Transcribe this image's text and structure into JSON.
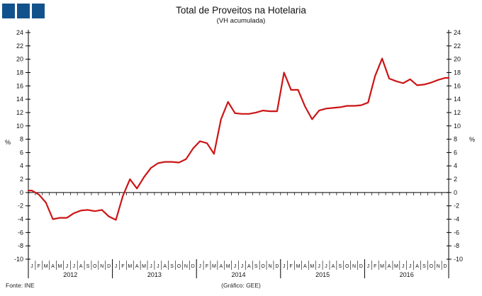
{
  "header": {
    "title": "Total de Proveitos na Hotelaria",
    "subtitle": "(VH acumulada)"
  },
  "footer": {
    "source": "Fonte: INE",
    "credit": "(Gráfico: GEE)"
  },
  "logo": {
    "color": "#12528c",
    "squares": 3
  },
  "axis_units": {
    "left": "%",
    "right": "%"
  },
  "chart_data": {
    "type": "line",
    "title": "Total de Proveitos na Hotelaria",
    "subtitle": "(VH acumulada)",
    "ylabel": "%",
    "ylim": [
      -10,
      24
    ],
    "ytick_step": 2,
    "yticks": [
      24,
      22,
      20,
      18,
      16,
      14,
      12,
      10,
      8,
      6,
      4,
      2,
      0,
      -2,
      -4,
      -6,
      -8,
      -10
    ],
    "grid": false,
    "legend": false,
    "line_color": "#cc1414",
    "axis_color": "#000000",
    "month_letters": [
      "J",
      "F",
      "M",
      "A",
      "M",
      "J",
      "J",
      "A",
      "S",
      "O",
      "N",
      "D"
    ],
    "years": [
      "2012",
      "2013",
      "2014",
      "2015",
      "2016"
    ],
    "series": [
      {
        "name": "Total de Proveitos na Hotelaria (VH acumulada, %)",
        "values": [
          0.3,
          -0.3,
          -1.5,
          -4.0,
          -3.8,
          -3.8,
          -3.1,
          -2.7,
          -2.6,
          -2.8,
          -2.6,
          -3.6,
          -4.1,
          -0.5,
          2.0,
          0.6,
          2.3,
          3.7,
          4.4,
          4.6,
          4.6,
          4.5,
          5.0,
          6.6,
          7.7,
          7.4,
          5.8,
          11.0,
          13.6,
          11.9,
          11.8,
          11.8,
          12.0,
          12.3,
          12.2,
          12.2,
          18.0,
          15.4,
          15.4,
          12.9,
          11.0,
          12.3,
          12.6,
          12.7,
          12.8,
          13.0,
          13.0,
          13.1,
          13.5,
          17.5,
          20.1,
          17.1,
          16.7,
          16.4,
          17.0,
          16.1,
          16.2,
          16.5,
          16.9,
          17.2
        ]
      }
    ]
  }
}
